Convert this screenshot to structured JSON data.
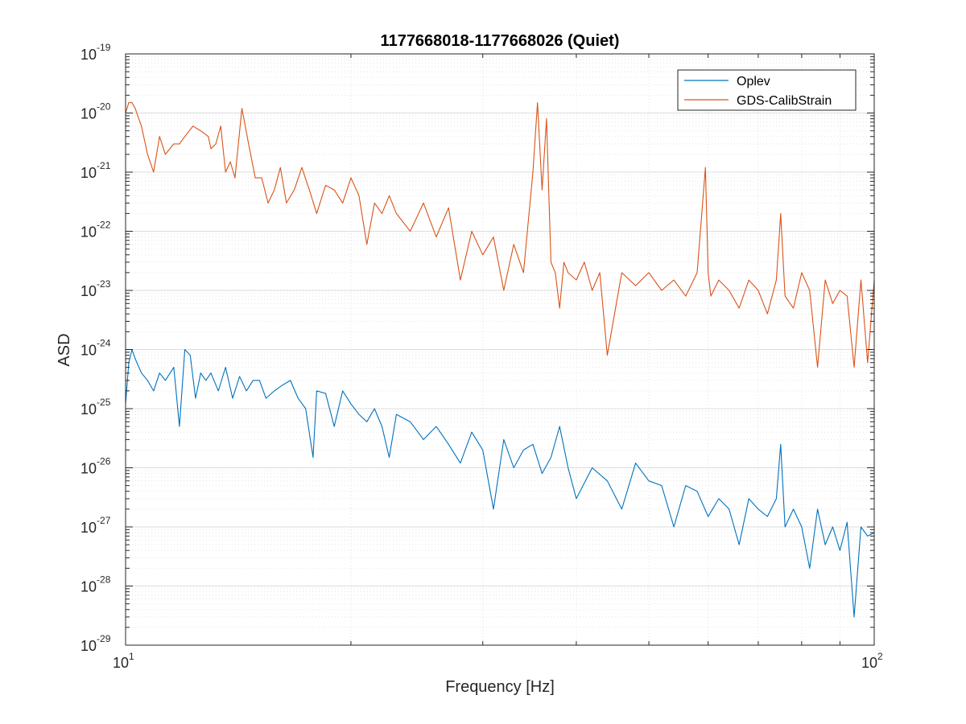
{
  "chart_data": {
    "type": "line",
    "title": "1177668018-1177668026 (Quiet)",
    "xlabel": "Frequency [Hz]",
    "ylabel": "ASD",
    "xscale": "log",
    "yscale": "log",
    "xlim": [
      10,
      100
    ],
    "ylim": [
      1e-29,
      1e-19
    ],
    "grid": "on (major and minor)",
    "legend_position": "top-right",
    "x_tick_labels": [
      {
        "value": 10,
        "base": "10",
        "exp": "1"
      },
      {
        "value": 100,
        "base": "10",
        "exp": "2"
      }
    ],
    "y_tick_labels": [
      {
        "value": -29,
        "base": "10",
        "exp": "-29"
      },
      {
        "value": -28,
        "base": "10",
        "exp": "-28"
      },
      {
        "value": -27,
        "base": "10",
        "exp": "-27"
      },
      {
        "value": -26,
        "base": "10",
        "exp": "-26"
      },
      {
        "value": -25,
        "base": "10",
        "exp": "-25"
      },
      {
        "value": -24,
        "base": "10",
        "exp": "-24"
      },
      {
        "value": -23,
        "base": "10",
        "exp": "-23"
      },
      {
        "value": -22,
        "base": "10",
        "exp": "-22"
      },
      {
        "value": -21,
        "base": "10",
        "exp": "-21"
      },
      {
        "value": -20,
        "base": "10",
        "exp": "-20"
      },
      {
        "value": -19,
        "base": "10",
        "exp": "-19"
      }
    ],
    "series": [
      {
        "name": "Oplev",
        "color": "#0072BD",
        "x": [
          10,
          10.1,
          10.2,
          10.3,
          10.5,
          10.7,
          10.9,
          11.1,
          11.3,
          11.6,
          11.8,
          12.0,
          12.2,
          12.4,
          12.6,
          12.8,
          13.0,
          13.3,
          13.6,
          13.9,
          14.2,
          14.5,
          14.8,
          15.1,
          15.4,
          15.8,
          16.2,
          16.6,
          17.0,
          17.4,
          17.8,
          18.0,
          18.5,
          19.0,
          19.5,
          20.0,
          20.5,
          21.0,
          21.5,
          22.0,
          22.5,
          23.0,
          24.0,
          25.0,
          26.0,
          27.0,
          28.0,
          29.0,
          30.0,
          31.0,
          32.0,
          33.0,
          34.0,
          35.0,
          36.0,
          37.0,
          38.0,
          39.0,
          40.0,
          42.0,
          44.0,
          46.0,
          48.0,
          50.0,
          52.0,
          54.0,
          56.0,
          58.0,
          60.0,
          62.0,
          64.0,
          66.0,
          68.0,
          70.0,
          72.0,
          74.0,
          75.0,
          76.0,
          78.0,
          80.0,
          82.0,
          84.0,
          86.0,
          88.0,
          90.0,
          92.0,
          94.0,
          96.0,
          98.0,
          100.0
        ],
        "y": [
          1.2e-25,
          6e-25,
          1e-24,
          7e-25,
          4e-25,
          3e-25,
          2e-25,
          4e-25,
          3e-25,
          5e-25,
          5e-26,
          1e-24,
          8e-25,
          1.5e-25,
          4e-25,
          3e-25,
          4e-25,
          2e-25,
          5e-25,
          1.5e-25,
          3.5e-25,
          2e-25,
          3e-25,
          3e-25,
          1.5e-25,
          2e-25,
          2.5e-25,
          3e-25,
          1.5e-25,
          1e-25,
          1.5e-26,
          2e-25,
          1.8e-25,
          5e-26,
          2e-25,
          1.2e-25,
          8e-26,
          6e-26,
          1e-25,
          5e-26,
          1.5e-26,
          8e-26,
          6e-26,
          3e-26,
          5e-26,
          2.5e-26,
          1.2e-26,
          4e-26,
          2e-26,
          2e-27,
          3e-26,
          1e-26,
          2e-26,
          2.5e-26,
          8e-27,
          1.5e-26,
          5e-26,
          1e-26,
          3e-27,
          1e-26,
          6e-27,
          2e-27,
          1.2e-26,
          6e-27,
          5e-27,
          1e-27,
          5e-27,
          4e-27,
          1.5e-27,
          3e-27,
          2e-27,
          5e-28,
          3e-27,
          2e-27,
          1.5e-27,
          3e-27,
          2.5e-26,
          1e-27,
          2e-27,
          1e-27,
          2e-28,
          2e-27,
          5e-28,
          1e-27,
          4e-28,
          1.2e-27,
          3e-29,
          1e-27,
          7e-28,
          8e-28
        ]
      },
      {
        "name": "GDS-CalibStrain",
        "color": "#D95319",
        "x": [
          10,
          10.1,
          10.2,
          10.3,
          10.5,
          10.7,
          10.9,
          11.1,
          11.3,
          11.6,
          11.8,
          12.0,
          12.3,
          12.6,
          12.9,
          13.0,
          13.2,
          13.4,
          13.6,
          13.8,
          14.0,
          14.3,
          14.6,
          14.9,
          15.2,
          15.5,
          15.8,
          16.1,
          16.4,
          16.8,
          17.2,
          17.6,
          18.0,
          18.5,
          19.0,
          19.5,
          20.0,
          20.5,
          21.0,
          21.5,
          22.0,
          22.5,
          23.0,
          24.0,
          25.0,
          26.0,
          27.0,
          28.0,
          29.0,
          30.0,
          31.0,
          32.0,
          33.0,
          34.0,
          35.0,
          35.5,
          36.0,
          36.5,
          37.0,
          37.5,
          38.0,
          38.5,
          39.0,
          40.0,
          41.0,
          42.0,
          43.0,
          44.0,
          46.0,
          48.0,
          50.0,
          52.0,
          54.0,
          56.0,
          58.0,
          59.5,
          60.0,
          60.5,
          62.0,
          64.0,
          66.0,
          68.0,
          70.0,
          72.0,
          74.0,
          75.0,
          76.0,
          78.0,
          80.0,
          82.0,
          84.0,
          86.0,
          88.0,
          90.0,
          92.0,
          94.0,
          96.0,
          98.0,
          100.0
        ],
        "y": [
          1e-20,
          1.5e-20,
          1.5e-20,
          1.2e-20,
          6e-21,
          2e-21,
          1e-21,
          4e-21,
          2e-21,
          3e-21,
          3e-21,
          4e-21,
          6e-21,
          5e-21,
          4e-21,
          2.5e-21,
          3e-21,
          6e-21,
          1e-21,
          1.5e-21,
          8e-22,
          1.2e-20,
          3e-21,
          8e-22,
          8e-22,
          3e-22,
          5e-22,
          1.2e-21,
          3e-22,
          5e-22,
          1.2e-21,
          5e-22,
          2e-22,
          6e-22,
          5e-22,
          3e-22,
          8e-22,
          4e-22,
          6e-23,
          3e-22,
          2e-22,
          4e-22,
          2e-22,
          1e-22,
          3e-22,
          8e-23,
          2.5e-22,
          1.5e-23,
          1e-22,
          4e-23,
          8e-23,
          1e-23,
          6e-23,
          2e-23,
          1e-21,
          1.5e-20,
          5e-22,
          8e-21,
          3e-23,
          2e-23,
          5e-24,
          3e-23,
          2e-23,
          1.5e-23,
          3e-23,
          1e-23,
          2e-23,
          8e-25,
          2e-23,
          1.2e-23,
          2e-23,
          1e-23,
          1.5e-23,
          8e-24,
          2e-23,
          1.2e-21,
          2e-23,
          8e-24,
          1.5e-23,
          1e-23,
          5e-24,
          1.5e-23,
          1e-23,
          4e-24,
          1.5e-23,
          2e-22,
          8e-24,
          5e-24,
          2e-23,
          1e-23,
          5e-25,
          1.5e-23,
          6e-24,
          1e-23,
          8e-24,
          5e-25,
          1.5e-23,
          6e-25,
          1.5e-23
        ]
      }
    ]
  }
}
